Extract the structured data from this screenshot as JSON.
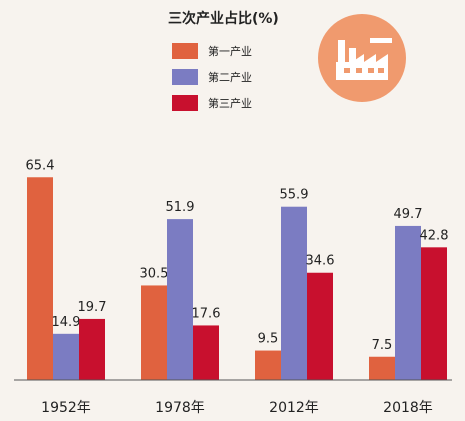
{
  "colors": {
    "primary": "#e0623f",
    "secondary": "#7b7cc2",
    "tertiary": "#c8102e",
    "badge": "#f09a6e"
  },
  "icon": "factory-icon",
  "chart_data": {
    "type": "bar",
    "title": "三次产业占比(%)",
    "categories": [
      "1952年",
      "1978年",
      "2012年",
      "2018年"
    ],
    "series": [
      {
        "name": "第一产业",
        "values": [
          65.4,
          30.5,
          9.5,
          7.5
        ]
      },
      {
        "name": "第二产业",
        "values": [
          14.9,
          51.9,
          55.9,
          49.7
        ]
      },
      {
        "name": "第三产业",
        "values": [
          19.7,
          17.6,
          34.6,
          42.8
        ]
      }
    ],
    "value_labels": [
      [
        "65.4",
        "30.5",
        "9.5",
        "7.5"
      ],
      [
        "14.9",
        "51.9",
        "55.9",
        "49.7"
      ],
      [
        "19.7",
        "17.6",
        "34.6",
        "42.8"
      ]
    ],
    "ylim": [
      0,
      70
    ],
    "legend_position": "top-center",
    "grid": false
  }
}
